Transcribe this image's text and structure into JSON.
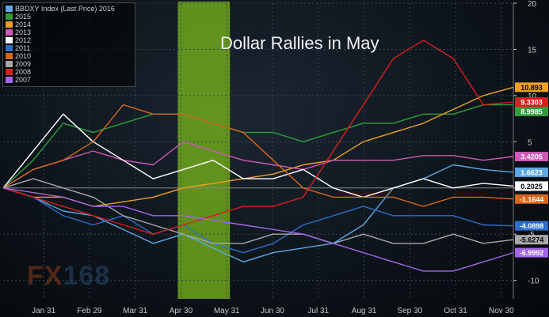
{
  "chart_data": {
    "type": "line",
    "title": "Dollar Rallies in May",
    "xlabel": "",
    "ylabel": "",
    "x_ticks": [
      "Jan 31",
      "Feb 29",
      "Mar 31",
      "Apr 30",
      "May 31",
      "Jun 30",
      "Jul 31",
      "Aug 31",
      "Sep 30",
      "Oct 31",
      "Nov 30"
    ],
    "y_ticks": [
      20,
      15,
      10,
      5,
      0,
      -5,
      -10
    ],
    "ylim": [
      -12,
      20
    ],
    "xlim": [
      0,
      340
    ],
    "grid": true,
    "legend_position": "top-left",
    "highlight_band": {
      "from": "Apr 30",
      "to": "May 31",
      "color": "#7fbf1a"
    },
    "series": [
      {
        "name": "BBDXY Index (Last Price) 2016",
        "color": "#5aa9e6",
        "end_label": "1.6623",
        "x": [
          0,
          20,
          40,
          60,
          80,
          100,
          120,
          140,
          160,
          180,
          200,
          220,
          240,
          260,
          280,
          300,
          320,
          340
        ],
        "y": [
          0,
          -1,
          -2.5,
          -3,
          -4.5,
          -6,
          -5,
          -6.5,
          -8,
          -7,
          -6.5,
          -6,
          -4,
          0,
          1,
          2.5,
          2,
          1.7
        ]
      },
      {
        "name": "2015",
        "color": "#2e9e3a",
        "end_label": "8.9985",
        "x": [
          0,
          20,
          40,
          60,
          80,
          100,
          120,
          140,
          160,
          180,
          200,
          220,
          240,
          260,
          280,
          300,
          320,
          340
        ],
        "y": [
          0,
          3,
          7,
          6,
          7,
          8,
          8,
          7,
          6,
          6,
          5,
          6,
          7,
          7,
          8,
          8,
          9,
          9
        ]
      },
      {
        "name": "2014",
        "color": "#f0a020",
        "end_label": "10.893",
        "x": [
          0,
          20,
          40,
          60,
          80,
          100,
          120,
          140,
          160,
          180,
          200,
          220,
          240,
          260,
          280,
          300,
          320,
          340
        ],
        "y": [
          0,
          -1,
          -1,
          -2,
          -1.5,
          -1,
          0,
          0.5,
          1,
          1.5,
          2.5,
          3,
          5,
          6,
          7,
          8.5,
          10,
          10.9
        ]
      },
      {
        "name": "2013",
        "color": "#d158b8",
        "end_label": "3.4205",
        "x": [
          0,
          20,
          40,
          60,
          80,
          100,
          120,
          140,
          160,
          180,
          200,
          220,
          240,
          260,
          280,
          300,
          320,
          340
        ],
        "y": [
          0,
          2,
          3,
          4,
          3,
          2.5,
          5,
          4,
          3,
          2.5,
          2,
          3,
          3,
          3,
          3.5,
          3.5,
          3,
          3.4
        ]
      },
      {
        "name": "2012",
        "color": "#ffffff",
        "end_label": "0.2025",
        "x": [
          0,
          20,
          40,
          60,
          80,
          100,
          120,
          140,
          160,
          180,
          200,
          220,
          240,
          260,
          280,
          300,
          320,
          340
        ],
        "y": [
          0,
          4,
          8,
          5,
          3,
          1,
          2,
          3,
          1,
          1,
          2,
          0,
          -1,
          0,
          1,
          0,
          0.5,
          0.2
        ]
      },
      {
        "name": "2011",
        "color": "#2a6fc9",
        "end_label": "-4.0898",
        "x": [
          0,
          20,
          40,
          60,
          80,
          100,
          120,
          140,
          160,
          180,
          200,
          220,
          240,
          260,
          280,
          300,
          320,
          340
        ],
        "y": [
          0,
          -1,
          -3,
          -4,
          -3,
          -5,
          -4,
          -6,
          -7,
          -6,
          -4,
          -3,
          -2,
          -3,
          -3,
          -3,
          -4,
          -4.1
        ]
      },
      {
        "name": "2010",
        "color": "#d9651a",
        "end_label": "-1.1644",
        "x": [
          0,
          20,
          40,
          60,
          80,
          100,
          120,
          140,
          160,
          180,
          200,
          220,
          240,
          260,
          280,
          300,
          320,
          340
        ],
        "y": [
          0,
          2,
          3,
          5,
          9,
          8,
          8,
          7,
          6,
          3,
          0,
          -1,
          -1,
          -1,
          -2,
          -1,
          -1,
          -1.2
        ]
      },
      {
        "name": "2009",
        "color": "#a8a8a8",
        "end_label": "-5.6274",
        "x": [
          0,
          20,
          40,
          60,
          80,
          100,
          120,
          140,
          160,
          180,
          200,
          220,
          240,
          260,
          280,
          300,
          320,
          340
        ],
        "y": [
          0,
          1,
          0,
          -1,
          -3,
          -4,
          -5,
          -6,
          -6,
          -5,
          -5,
          -6,
          -5,
          -6,
          -6,
          -5,
          -6,
          -5.6
        ]
      },
      {
        "name": "2008",
        "color": "#d81e1e",
        "end_label": "9.3303",
        "x": [
          0,
          20,
          40,
          60,
          80,
          100,
          120,
          140,
          160,
          180,
          200,
          220,
          240,
          260,
          280,
          300,
          320,
          340
        ],
        "y": [
          0,
          -1,
          -2,
          -3,
          -4,
          -5,
          -4,
          -3,
          -2,
          -2,
          -1,
          4,
          9,
          14,
          16,
          14,
          9,
          9.3
        ]
      },
      {
        "name": "2007",
        "color": "#a366e8",
        "end_label": "-6.9992",
        "x": [
          0,
          20,
          40,
          60,
          80,
          100,
          120,
          140,
          160,
          180,
          200,
          220,
          240,
          260,
          280,
          300,
          320,
          340
        ],
        "y": [
          0,
          -0.5,
          -1,
          -2,
          -2,
          -3,
          -3,
          -3.5,
          -4,
          -4.5,
          -5,
          -6,
          -7,
          -8,
          -9,
          -9,
          -8,
          -7
        ]
      }
    ]
  },
  "watermark": {
    "letters": "FX",
    "digits": "168"
  },
  "colors": {
    "grid": "#3a4652",
    "axis_text": "#c8c8c8",
    "zero_line": "#888888"
  }
}
